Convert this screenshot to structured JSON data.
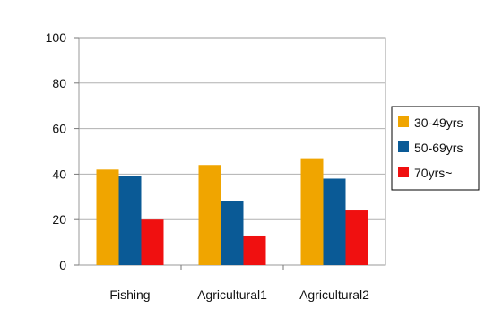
{
  "chart_data": {
    "type": "bar",
    "categories": [
      "Fishing",
      "Agricultural1",
      "Agricultural2"
    ],
    "series": [
      {
        "name": "30-49yrs",
        "values": [
          42,
          44,
          47
        ],
        "color": "#F0A500"
      },
      {
        "name": "50-69yrs",
        "values": [
          39,
          28,
          38
        ],
        "color": "#0A5A96"
      },
      {
        "name": "70yrs~",
        "values": [
          20,
          13,
          24
        ],
        "color": "#F01010"
      }
    ],
    "title": "",
    "xlabel": "",
    "ylabel": "",
    "ylim": [
      0,
      100
    ],
    "yticks": [
      0,
      20,
      40,
      60,
      80,
      100
    ],
    "grid": true,
    "legend_position": "right"
  }
}
